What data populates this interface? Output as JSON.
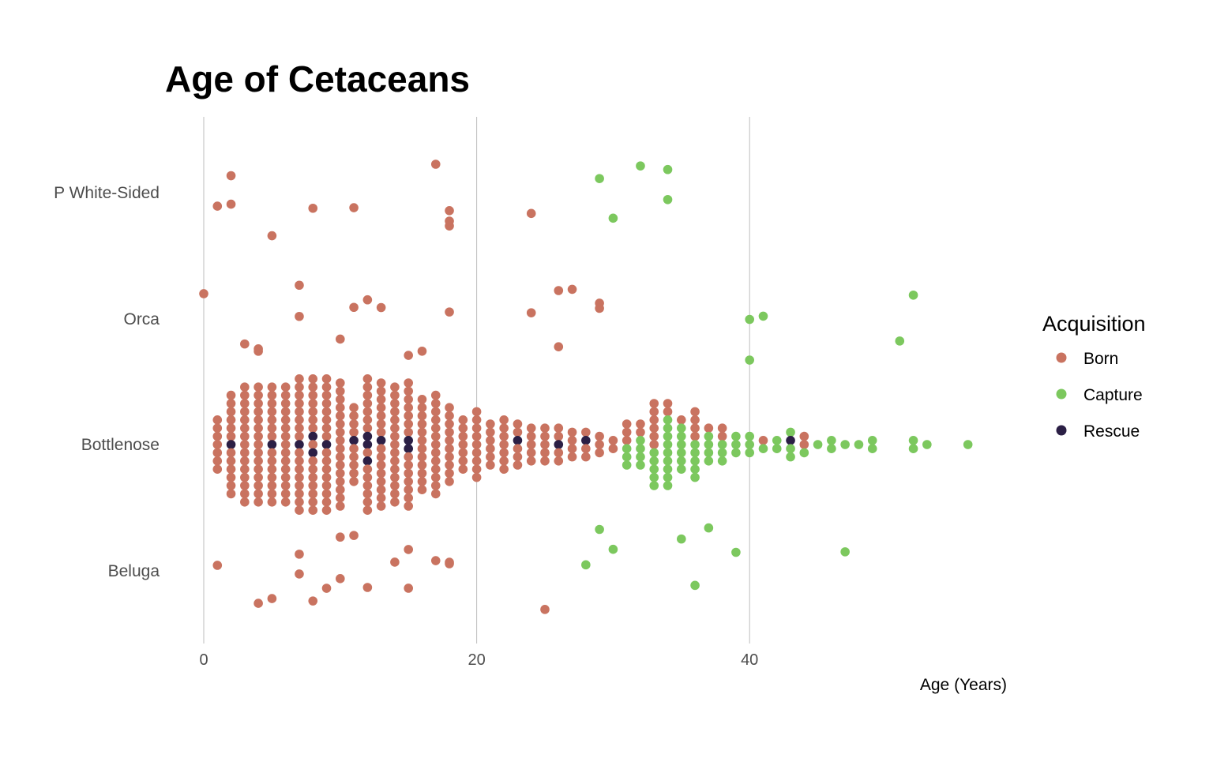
{
  "chart_data": {
    "type": "scatter",
    "subtype": "beeswarm",
    "title": "Age of Cetaceans",
    "xlabel": "Age (Years)",
    "ylabel": "",
    "xlim": [
      0,
      59
    ],
    "xticks": [
      0,
      20,
      40
    ],
    "grid": "vertical major lines",
    "legend": {
      "title": "Acquisition",
      "position": "right",
      "entries": [
        {
          "name": "Born",
          "color": "#c97360"
        },
        {
          "name": "Capture",
          "color": "#7cc85e"
        },
        {
          "name": "Rescue",
          "color": "#2b1f45"
        }
      ]
    },
    "categories": [
      "P White-Sided",
      "Orca",
      "Bottlenose",
      "Beluga"
    ],
    "series": [
      {
        "name": "P White-Sided",
        "points": [
          {
            "age": 1,
            "acquisition": "Born"
          },
          {
            "age": 2,
            "acquisition": "Born"
          },
          {
            "age": 2,
            "acquisition": "Born"
          },
          {
            "age": 5,
            "acquisition": "Born"
          },
          {
            "age": 8,
            "acquisition": "Born"
          },
          {
            "age": 11,
            "acquisition": "Born"
          },
          {
            "age": 17,
            "acquisition": "Born"
          },
          {
            "age": 18,
            "acquisition": "Born"
          },
          {
            "age": 18,
            "acquisition": "Born"
          },
          {
            "age": 18,
            "acquisition": "Born"
          },
          {
            "age": 24,
            "acquisition": "Born"
          },
          {
            "age": 29,
            "acquisition": "Capture"
          },
          {
            "age": 30,
            "acquisition": "Capture"
          },
          {
            "age": 32,
            "acquisition": "Capture"
          },
          {
            "age": 34,
            "acquisition": "Capture"
          },
          {
            "age": 34,
            "acquisition": "Capture"
          }
        ]
      },
      {
        "name": "Orca",
        "points": [
          {
            "age": 0,
            "acquisition": "Born"
          },
          {
            "age": 3,
            "acquisition": "Born"
          },
          {
            "age": 4,
            "acquisition": "Born"
          },
          {
            "age": 4,
            "acquisition": "Born"
          },
          {
            "age": 7,
            "acquisition": "Born"
          },
          {
            "age": 7,
            "acquisition": "Born"
          },
          {
            "age": 10,
            "acquisition": "Born"
          },
          {
            "age": 11,
            "acquisition": "Born"
          },
          {
            "age": 12,
            "acquisition": "Born"
          },
          {
            "age": 13,
            "acquisition": "Born"
          },
          {
            "age": 15,
            "acquisition": "Born"
          },
          {
            "age": 16,
            "acquisition": "Born"
          },
          {
            "age": 18,
            "acquisition": "Born"
          },
          {
            "age": 24,
            "acquisition": "Born"
          },
          {
            "age": 26,
            "acquisition": "Born"
          },
          {
            "age": 26,
            "acquisition": "Born"
          },
          {
            "age": 27,
            "acquisition": "Born"
          },
          {
            "age": 29,
            "acquisition": "Born"
          },
          {
            "age": 29,
            "acquisition": "Born"
          },
          {
            "age": 40,
            "acquisition": "Capture"
          },
          {
            "age": 40,
            "acquisition": "Capture"
          },
          {
            "age": 41,
            "acquisition": "Capture"
          },
          {
            "age": 51,
            "acquisition": "Capture"
          },
          {
            "age": 52,
            "acquisition": "Capture"
          }
        ]
      },
      {
        "name": "Bottlenose",
        "counts": [
          {
            "age": 1,
            "born": 7
          },
          {
            "age": 2,
            "born": 12,
            "rescue": 1
          },
          {
            "age": 3,
            "born": 15
          },
          {
            "age": 4,
            "born": 15
          },
          {
            "age": 5,
            "born": 14,
            "rescue": 1
          },
          {
            "age": 6,
            "born": 15
          },
          {
            "age": 7,
            "born": 16,
            "rescue": 1
          },
          {
            "age": 8,
            "born": 15,
            "rescue": 2
          },
          {
            "age": 9,
            "born": 16,
            "rescue": 1
          },
          {
            "age": 10,
            "born": 16
          },
          {
            "age": 11,
            "born": 9,
            "rescue": 1
          },
          {
            "age": 12,
            "born": 14,
            "rescue": 3
          },
          {
            "age": 13,
            "born": 15,
            "rescue": 1
          },
          {
            "age": 14,
            "born": 15
          },
          {
            "age": 15,
            "born": 14,
            "rescue": 2
          },
          {
            "age": 16,
            "born": 12
          },
          {
            "age": 17,
            "born": 13
          },
          {
            "age": 18,
            "born": 10
          },
          {
            "age": 19,
            "born": 7
          },
          {
            "age": 20,
            "born": 9
          },
          {
            "age": 21,
            "born": 6
          },
          {
            "age": 22,
            "born": 7
          },
          {
            "age": 23,
            "born": 5,
            "rescue": 1
          },
          {
            "age": 24,
            "born": 5
          },
          {
            "age": 25,
            "born": 5
          },
          {
            "age": 26,
            "born": 4,
            "rescue": 1
          },
          {
            "age": 27,
            "born": 4
          },
          {
            "age": 28,
            "born": 3,
            "rescue": 1
          },
          {
            "age": 29,
            "born": 3
          },
          {
            "age": 30,
            "born": 2
          },
          {
            "age": 31,
            "born": 3,
            "capture": 3
          },
          {
            "age": 32,
            "born": 2,
            "capture": 4
          },
          {
            "age": 33,
            "born": 6,
            "capture": 5
          },
          {
            "age": 34,
            "born": 2,
            "capture": 9
          },
          {
            "age": 35,
            "born": 1,
            "capture": 6
          },
          {
            "age": 36,
            "born": 4,
            "capture": 5
          },
          {
            "age": 37,
            "born": 1,
            "capture": 4
          },
          {
            "age": 38,
            "born": 2,
            "capture": 3
          },
          {
            "age": 39,
            "capture": 3
          },
          {
            "age": 40,
            "capture": 3
          },
          {
            "age": 41,
            "born": 1,
            "capture": 1
          },
          {
            "age": 42,
            "capture": 2
          },
          {
            "age": 43,
            "capture": 3,
            "rescue": 1
          },
          {
            "age": 44,
            "born": 2,
            "capture": 1
          },
          {
            "age": 45,
            "capture": 1
          },
          {
            "age": 46,
            "capture": 2
          },
          {
            "age": 47,
            "capture": 1
          },
          {
            "age": 48,
            "capture": 1
          },
          {
            "age": 49,
            "capture": 2
          },
          {
            "age": 52,
            "capture": 2
          },
          {
            "age": 53,
            "capture": 1
          },
          {
            "age": 56,
            "capture": 1
          }
        ]
      },
      {
        "name": "Beluga",
        "points": [
          {
            "age": 1,
            "acquisition": "Born"
          },
          {
            "age": 4,
            "acquisition": "Born"
          },
          {
            "age": 5,
            "acquisition": "Born"
          },
          {
            "age": 7,
            "acquisition": "Born"
          },
          {
            "age": 7,
            "acquisition": "Born"
          },
          {
            "age": 8,
            "acquisition": "Born"
          },
          {
            "age": 9,
            "acquisition": "Born"
          },
          {
            "age": 10,
            "acquisition": "Born"
          },
          {
            "age": 10,
            "acquisition": "Born"
          },
          {
            "age": 11,
            "acquisition": "Born"
          },
          {
            "age": 12,
            "acquisition": "Born"
          },
          {
            "age": 14,
            "acquisition": "Born"
          },
          {
            "age": 15,
            "acquisition": "Born"
          },
          {
            "age": 15,
            "acquisition": "Born"
          },
          {
            "age": 17,
            "acquisition": "Born"
          },
          {
            "age": 18,
            "acquisition": "Born"
          },
          {
            "age": 18,
            "acquisition": "Born"
          },
          {
            "age": 25,
            "acquisition": "Born"
          },
          {
            "age": 28,
            "acquisition": "Capture"
          },
          {
            "age": 29,
            "acquisition": "Capture"
          },
          {
            "age": 30,
            "acquisition": "Capture"
          },
          {
            "age": 35,
            "acquisition": "Capture"
          },
          {
            "age": 36,
            "acquisition": "Capture"
          },
          {
            "age": 37,
            "acquisition": "Capture"
          },
          {
            "age": 39,
            "acquisition": "Capture"
          },
          {
            "age": 47,
            "acquisition": "Capture"
          }
        ]
      }
    ]
  }
}
